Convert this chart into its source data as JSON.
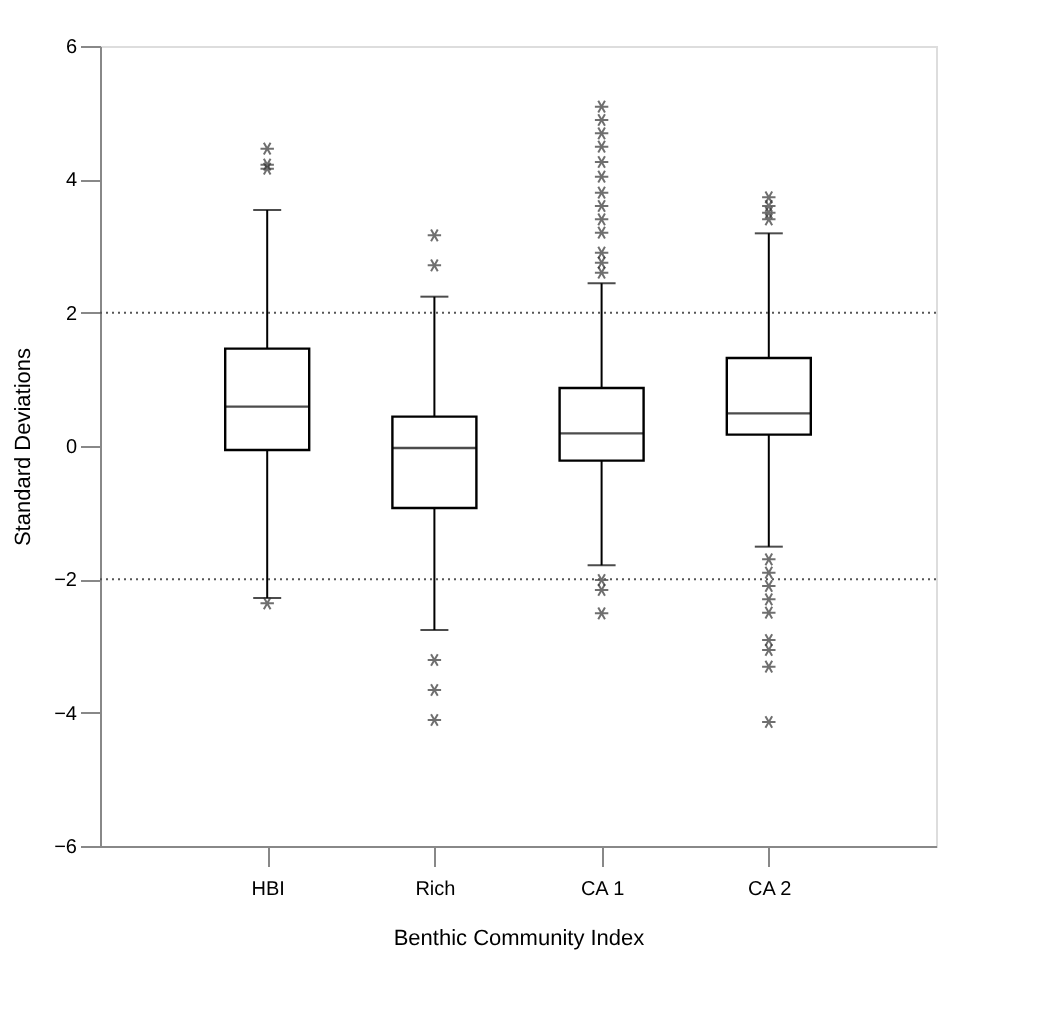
{
  "chart_data": {
    "type": "box",
    "xlabel": "Benthic Community Index",
    "ylabel": "Standard Deviations",
    "categories": [
      "HBI",
      "Rich",
      "CA 1",
      "CA 2"
    ],
    "boxes": [
      {
        "low": -2.28,
        "q1": -0.06,
        "median": 0.59,
        "q3": 1.46,
        "high": 3.54,
        "outliers": [
          4.46,
          4.22,
          4.16,
          -2.36
        ]
      },
      {
        "low": -2.76,
        "q1": -0.93,
        "median": -0.03,
        "q3": 0.44,
        "high": 2.24,
        "outliers": [
          3.16,
          2.71,
          -3.21,
          -3.66,
          -4.11
        ]
      },
      {
        "low": -1.79,
        "q1": -0.22,
        "median": 0.19,
        "q3": 0.87,
        "high": 2.44,
        "outliers": [
          5.09,
          4.89,
          4.69,
          4.49,
          4.26,
          4.04,
          3.8,
          3.6,
          3.4,
          3.2,
          2.9,
          2.75,
          2.6,
          -2.01,
          -2.16,
          -2.51
        ]
      },
      {
        "low": -1.51,
        "q1": 0.17,
        "median": 0.49,
        "q3": 1.32,
        "high": 3.19,
        "outliers": [
          3.73,
          3.6,
          3.5,
          3.4,
          -1.7,
          -1.9,
          -2.1,
          -2.3,
          -2.5,
          -2.91,
          -3.06,
          -3.31,
          -4.14
        ]
      }
    ],
    "ylim": [
      -6,
      6
    ],
    "yticks": [
      -6,
      -4,
      -2,
      0,
      2,
      4,
      6
    ],
    "grid": false,
    "marker": "cross",
    "ref_lines": [
      {
        "axis": "y",
        "value": 2,
        "line_style": "dotted",
        "color": "#555555"
      },
      {
        "axis": "y",
        "value": -2,
        "line_style": "dotted",
        "color": "#555555"
      }
    ]
  }
}
